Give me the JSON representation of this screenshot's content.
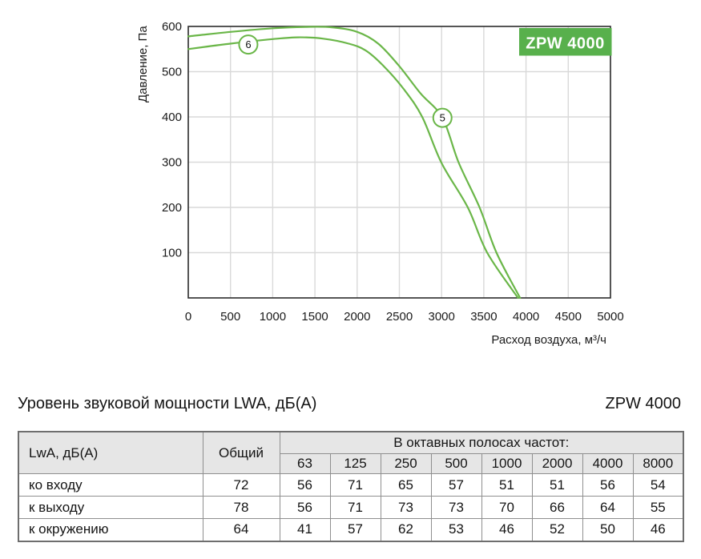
{
  "chart_data": {
    "type": "line",
    "title": "",
    "xlabel": "Расход воздуха, м³/ч",
    "ylabel": "Давление, Па",
    "xlim": [
      0,
      5000
    ],
    "ylim": [
      0,
      600
    ],
    "x_ticks": [
      "0",
      "500",
      "1000",
      "1500",
      "2000",
      "2500",
      "3000",
      "3500",
      "4000",
      "4500",
      "5000"
    ],
    "x_tick_values": [
      0,
      500,
      1000,
      1500,
      2000,
      2500,
      3000,
      3500,
      4000,
      4500,
      5000
    ],
    "y_ticks": [
      "100",
      "200",
      "300",
      "400",
      "500",
      "600"
    ],
    "y_tick_values": [
      100,
      200,
      300,
      400,
      500,
      600
    ],
    "grid": true,
    "legend_position": "none",
    "badge": "ZPW 4000",
    "colors": {
      "curve": "#6ab648",
      "grid": "#d9d9d9",
      "frame": "#2b2b2b",
      "badge_bg": "#58b04c",
      "badge_text": "#ffffff",
      "marker_fill": "#ffffff"
    },
    "series": [
      {
        "name": "5",
        "marker": {
          "label": "5",
          "x": 3010,
          "y": 398
        },
        "points": [
          [
            0,
            578
          ],
          [
            500,
            588
          ],
          [
            1000,
            596
          ],
          [
            1400,
            599
          ],
          [
            1700,
            598
          ],
          [
            2000,
            588
          ],
          [
            2250,
            562
          ],
          [
            2500,
            512
          ],
          [
            2750,
            452
          ],
          [
            3010,
            398
          ],
          [
            3200,
            300
          ],
          [
            3450,
            200
          ],
          [
            3650,
            100
          ],
          [
            3930,
            0
          ]
        ]
      },
      {
        "name": "6",
        "marker": {
          "label": "6",
          "x": 711,
          "y": 560
        },
        "points": [
          [
            0,
            550
          ],
          [
            500,
            562
          ],
          [
            1000,
            572
          ],
          [
            1300,
            576
          ],
          [
            1600,
            573
          ],
          [
            1900,
            562
          ],
          [
            2100,
            547
          ],
          [
            2300,
            515
          ],
          [
            2550,
            462
          ],
          [
            2770,
            400
          ],
          [
            3000,
            298
          ],
          [
            3310,
            200
          ],
          [
            3540,
            100
          ],
          [
            3905,
            0
          ]
        ]
      }
    ]
  },
  "section": {
    "title": "Уровень звуковой мощности LWA, дБ(А)",
    "model": "ZPW 4000"
  },
  "sound_table": {
    "corner_label": "LwA, дБ(А)",
    "total_label": "Общий",
    "octave_label": "В октавных полосах частот:",
    "frequencies": [
      "63",
      "125",
      "250",
      "500",
      "1000",
      "2000",
      "4000",
      "8000"
    ],
    "rows": [
      {
        "label": "ко входу",
        "total": "72",
        "values": [
          "56",
          "71",
          "65",
          "57",
          "51",
          "51",
          "56",
          "54"
        ]
      },
      {
        "label": "к выходу",
        "total": "78",
        "values": [
          "56",
          "71",
          "73",
          "73",
          "70",
          "66",
          "64",
          "55"
        ]
      },
      {
        "label": "к окружению",
        "total": "64",
        "values": [
          "41",
          "57",
          "62",
          "53",
          "46",
          "52",
          "50",
          "46"
        ]
      }
    ]
  }
}
